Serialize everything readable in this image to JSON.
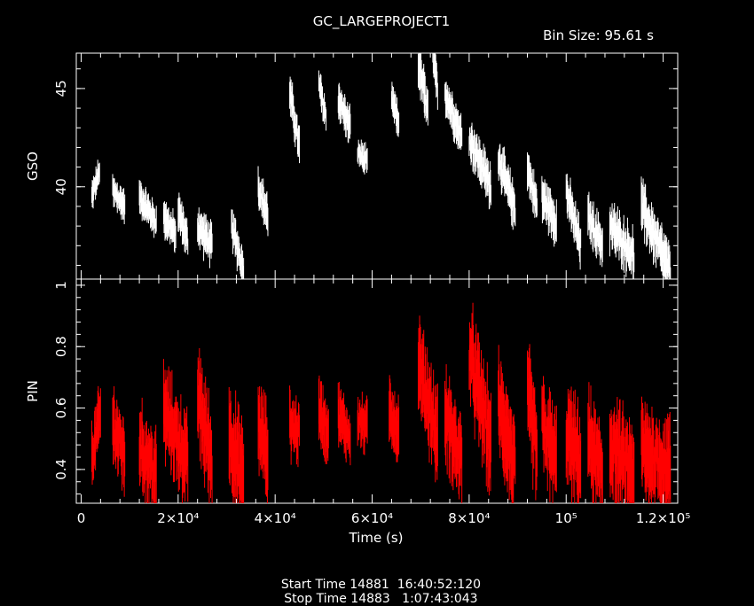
{
  "chart_data": {
    "type": "scatter",
    "title": "GC_LARGEPROJECT1",
    "annotation": "Bin Size:  95.61  s",
    "xlabel": "Time (s)",
    "x_ticks": [
      {
        "value": 0,
        "label": "0"
      },
      {
        "value": 20000,
        "label": "2×10⁴"
      },
      {
        "value": 40000,
        "label": "4×10⁴"
      },
      {
        "value": 60000,
        "label": "6×10⁴"
      },
      {
        "value": 80000,
        "label": "8×10⁴"
      },
      {
        "value": 100000,
        "label": "10⁵"
      },
      {
        "value": 120000,
        "label": "1.2×10⁵"
      }
    ],
    "xlim": [
      -1000,
      123000
    ],
    "panels": [
      {
        "name": "GSO",
        "ylabel": "GSO",
        "ylim": [
          35.3,
          46.8
        ],
        "y_ticks": [
          40,
          45
        ],
        "color": "#ffffff",
        "segments": [
          {
            "x": [
              2200,
              3800
            ],
            "y": [
              39.5,
              40.8
            ],
            "err": 0.7
          },
          {
            "x": [
              6500,
              9000
            ],
            "y": [
              39.8,
              39.0
            ],
            "err": 0.8
          },
          {
            "x": [
              12000,
              15500
            ],
            "y": [
              39.5,
              38.2
            ],
            "err": 0.8
          },
          {
            "x": [
              17000,
              19500
            ],
            "y": [
              38.5,
              37.5
            ],
            "err": 0.9
          },
          {
            "x": [
              20000,
              22000
            ],
            "y": [
              38.8,
              37.2
            ],
            "err": 0.9
          },
          {
            "x": [
              24000,
              27000
            ],
            "y": [
              38.0,
              37.0
            ],
            "err": 1.0
          },
          {
            "x": [
              31000,
              33500
            ],
            "y": [
              38.0,
              35.8
            ],
            "err": 1.0
          },
          {
            "x": [
              36500,
              38500
            ],
            "y": [
              40.0,
              38.5
            ],
            "err": 1.0
          },
          {
            "x": [
              43000,
              45000
            ],
            "y": [
              44.8,
              42.0
            ],
            "err": 1.0
          },
          {
            "x": [
              49000,
              50500
            ],
            "y": [
              45.2,
              43.5
            ],
            "err": 0.9
          },
          {
            "x": [
              53000,
              55500
            ],
            "y": [
              44.5,
              43.0
            ],
            "err": 0.9
          },
          {
            "x": [
              57000,
              59000
            ],
            "y": [
              41.8,
              41.2
            ],
            "err": 0.7
          },
          {
            "x": [
              64000,
              65500
            ],
            "y": [
              44.5,
              43.2
            ],
            "err": 0.8
          },
          {
            "x": [
              69500,
              71500
            ],
            "y": [
              46.3,
              43.8
            ],
            "err": 1.2
          },
          {
            "x": [
              72500,
              73500
            ],
            "y": [
              46.5,
              45.0
            ],
            "err": 1.0
          },
          {
            "x": [
              75000,
              78500
            ],
            "y": [
              44.8,
              42.5
            ],
            "err": 1.0
          },
          {
            "x": [
              80000,
              84500
            ],
            "y": [
              42.5,
              40.0
            ],
            "err": 1.1
          },
          {
            "x": [
              86000,
              89500
            ],
            "y": [
              41.5,
              38.8
            ],
            "err": 1.1
          },
          {
            "x": [
              92000,
              94000
            ],
            "y": [
              41.0,
              39.0
            ],
            "err": 1.0
          },
          {
            "x": [
              95000,
              98000
            ],
            "y": [
              39.5,
              38.2
            ],
            "err": 1.1
          },
          {
            "x": [
              100000,
              103000
            ],
            "y": [
              39.8,
              37.0
            ],
            "err": 1.1
          },
          {
            "x": [
              104500,
              107500
            ],
            "y": [
              38.5,
              37.0
            ],
            "err": 1.1
          },
          {
            "x": [
              109000,
              114000
            ],
            "y": [
              38.0,
              36.5
            ],
            "err": 1.2
          },
          {
            "x": [
              115500,
              121500
            ],
            "y": [
              39.0,
              35.6
            ],
            "err": 1.3
          }
        ]
      },
      {
        "name": "PIN",
        "ylabel": "PIN",
        "ylim": [
          0.29,
          1.02
        ],
        "y_ticks": [
          0.4,
          0.6,
          0.8,
          1
        ],
        "color": "#ff0000",
        "segments": [
          {
            "x": [
              2200,
              4000
            ],
            "y": [
              0.44,
              0.58
            ],
            "err": 0.1
          },
          {
            "x": [
              6500,
              9000
            ],
            "y": [
              0.55,
              0.44
            ],
            "err": 0.12
          },
          {
            "x": [
              12000,
              15500
            ],
            "y": [
              0.48,
              0.38
            ],
            "err": 0.13
          },
          {
            "x": [
              17000,
              22000
            ],
            "y": [
              0.6,
              0.42
            ],
            "err": 0.14
          },
          {
            "x": [
              24000,
              27000
            ],
            "y": [
              0.64,
              0.42
            ],
            "err": 0.16
          },
          {
            "x": [
              30500,
              33500
            ],
            "y": [
              0.52,
              0.36
            ],
            "err": 0.16
          },
          {
            "x": [
              36500,
              38500
            ],
            "y": [
              0.55,
              0.45
            ],
            "err": 0.14
          },
          {
            "x": [
              43000,
              45000
            ],
            "y": [
              0.55,
              0.52
            ],
            "err": 0.1
          },
          {
            "x": [
              49000,
              51000
            ],
            "y": [
              0.6,
              0.52
            ],
            "err": 0.1
          },
          {
            "x": [
              53000,
              55500
            ],
            "y": [
              0.58,
              0.5
            ],
            "err": 0.09
          },
          {
            "x": [
              57000,
              59000
            ],
            "y": [
              0.56,
              0.54
            ],
            "err": 0.08
          },
          {
            "x": [
              63500,
              65500
            ],
            "y": [
              0.6,
              0.52
            ],
            "err": 0.1
          },
          {
            "x": [
              69500,
              73500
            ],
            "y": [
              0.75,
              0.5
            ],
            "err": 0.14
          },
          {
            "x": [
              75000,
              78500
            ],
            "y": [
              0.58,
              0.42
            ],
            "err": 0.14
          },
          {
            "x": [
              80000,
              84500
            ],
            "y": [
              0.78,
              0.48
            ],
            "err": 0.16
          },
          {
            "x": [
              86000,
              89500
            ],
            "y": [
              0.62,
              0.4
            ],
            "err": 0.15
          },
          {
            "x": [
              92000,
              94000
            ],
            "y": [
              0.65,
              0.46
            ],
            "err": 0.16
          },
          {
            "x": [
              95000,
              98000
            ],
            "y": [
              0.55,
              0.42
            ],
            "err": 0.15
          },
          {
            "x": [
              100000,
              103000
            ],
            "y": [
              0.52,
              0.42
            ],
            "err": 0.15
          },
          {
            "x": [
              104500,
              107500
            ],
            "y": [
              0.5,
              0.38
            ],
            "err": 0.15
          },
          {
            "x": [
              109000,
              114000
            ],
            "y": [
              0.48,
              0.38
            ],
            "err": 0.15
          },
          {
            "x": [
              115500,
              121500
            ],
            "y": [
              0.46,
              0.4
            ],
            "err": 0.15
          }
        ]
      }
    ],
    "grid": false,
    "legend": "none"
  },
  "footer": {
    "start": "Start Time 14881  16:40:52:120",
    "stop": "Stop Time 14883   1:07:43:043"
  }
}
